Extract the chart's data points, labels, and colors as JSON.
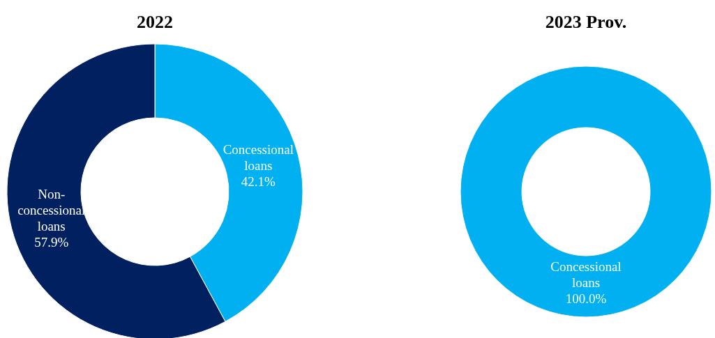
{
  "chart_data": [
    {
      "type": "donut",
      "title": "2022",
      "categories": [
        "Concessional loans",
        "Non-concessional loans"
      ],
      "values": [
        42.1,
        57.9
      ],
      "colors": [
        "#00b0f0",
        "#002060"
      ],
      "value_labels": [
        "42.1%",
        "57.9%"
      ]
    },
    {
      "type": "donut",
      "title": "2023 Prov.",
      "categories": [
        "Concessional loans"
      ],
      "values": [
        100.0
      ],
      "colors": [
        "#00b0f0"
      ],
      "value_labels": [
        "100.0%"
      ]
    }
  ]
}
